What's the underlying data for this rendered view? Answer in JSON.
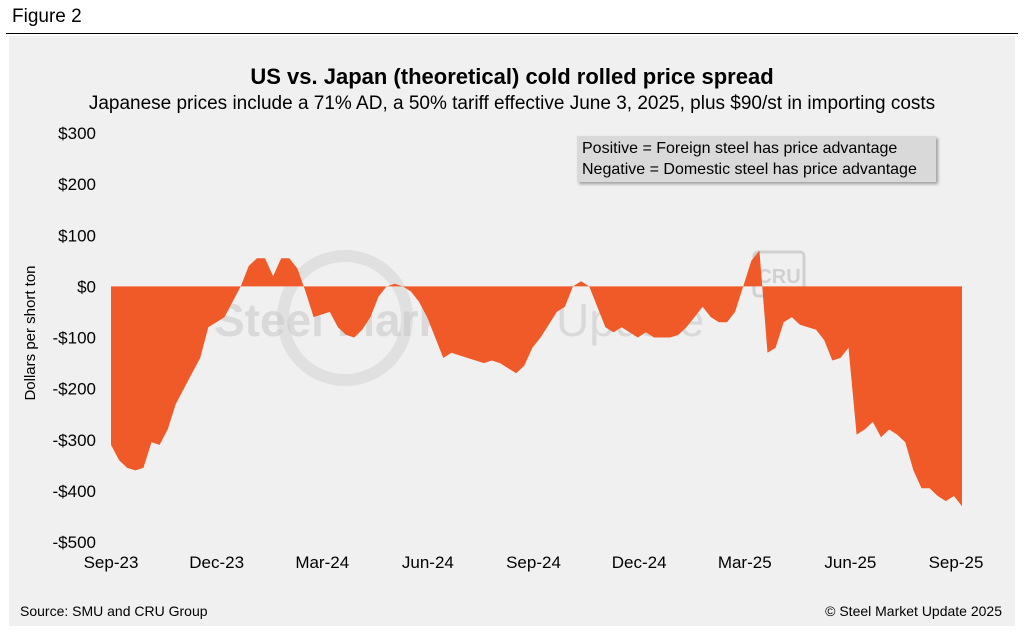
{
  "figure_label": "Figure 2",
  "source": "Source: SMU and CRU Group",
  "copyright": "© Steel Market Update 2025",
  "watermark": {
    "brand_text_bold": "Steel Market",
    "brand_text_light": " Update",
    "logo_text": "CRU"
  },
  "colors": {
    "fill": "#f05a28",
    "panel": "#f0f0f0",
    "legend_bg": "#d9d9d9"
  },
  "chart_data": {
    "type": "area",
    "title": "US vs. Japan (theoretical) cold rolled price spread",
    "subtitle": "Japanese prices include a 71% AD, a 50% tariff effective June 3, 2025, plus $90/st in importing costs",
    "ylabel": "Dollars per short ton",
    "xlabel": "",
    "ylim": [
      -500,
      300
    ],
    "y_ticks": [
      300,
      200,
      100,
      0,
      -100,
      -200,
      -300,
      -400,
      -500
    ],
    "y_tick_labels": [
      "$300",
      "$200",
      "$100",
      "$0",
      "-$100",
      "-$200",
      "-$300",
      "-$400",
      "-$500"
    ],
    "x_tick_labels": [
      "Sep-23",
      "Dec-23",
      "Mar-24",
      "Jun-24",
      "Sep-24",
      "Dec-24",
      "Mar-25",
      "Jun-25",
      "Sep-25"
    ],
    "legend": [
      "Positive = Foreign steel has price advantage",
      "Negative = Domestic steel has price advantage"
    ],
    "legend_position": "top-right",
    "grid": false,
    "series": [
      {
        "values": [
          -310,
          -340,
          -355,
          -360,
          -355,
          -305,
          -310,
          -280,
          -230,
          -200,
          -170,
          -140,
          -80,
          -70,
          -60,
          -30,
          0,
          40,
          55,
          55,
          20,
          55,
          55,
          35,
          -10,
          -60,
          -55,
          -50,
          -80,
          -95,
          -100,
          -85,
          -60,
          -20,
          0,
          5,
          0,
          -10,
          -30,
          -60,
          -100,
          -140,
          -130,
          -135,
          -140,
          -145,
          -150,
          -145,
          -150,
          -160,
          -170,
          -155,
          -120,
          -100,
          -75,
          -50,
          -40,
          0,
          10,
          0,
          -40,
          -80,
          -90,
          -80,
          -90,
          -100,
          -90,
          -100,
          -100,
          -100,
          -95,
          -80,
          -60,
          -40,
          -60,
          -70,
          -70,
          -50,
          0,
          50,
          70,
          -130,
          -120,
          -70,
          -60,
          -75,
          -80,
          -85,
          -105,
          -145,
          -140,
          -120,
          -290,
          -280,
          -265,
          -295,
          -280,
          -290,
          -305,
          -360,
          -395,
          -395,
          -410,
          -420,
          -410,
          -430
        ]
      }
    ]
  }
}
